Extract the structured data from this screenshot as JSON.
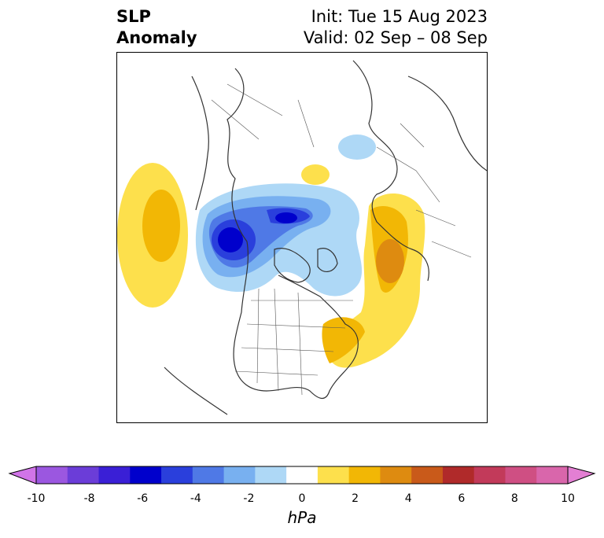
{
  "title": {
    "line1": "SLP",
    "line2": "Anomaly",
    "init": "Init: Tue 15 Aug 2023",
    "valid": "Valid: 02 Sep – 08 Sep"
  },
  "map": {
    "variable": "Sea level pressure anomaly",
    "region": "Northern Hemisphere polar view (North America / Arctic / Europe)"
  },
  "colorbar": {
    "unit": "hPa",
    "tick_labels": [
      "-10",
      "-8",
      "-6",
      "-4",
      "-2",
      "0",
      "2",
      "4",
      "6",
      "8",
      "10"
    ],
    "colors": [
      "#d174e8",
      "#9b57e0",
      "#6b3dd8",
      "#3a1fd6",
      "#0000cc",
      "#2a3fdc",
      "#4f79e6",
      "#78b0f0",
      "#aed8f6",
      "#ffffff",
      "#fde04c",
      "#f2b705",
      "#de8b10",
      "#c95a1a",
      "#b02a2a",
      "#c23a5a",
      "#cf4f83",
      "#d966ab",
      "#e37fd3"
    ],
    "extend": "both"
  },
  "anomaly_centers": [
    {
      "label": "negative",
      "region": "Alaska / Bering region",
      "min": -7
    },
    {
      "label": "negative",
      "region": "Central Arctic near Siberia",
      "min": -6
    },
    {
      "label": "positive",
      "region": "North Pacific",
      "max": 3
    },
    {
      "label": "positive",
      "region": "Greenland / Scandinavia corridor",
      "max": 4
    },
    {
      "label": "positive",
      "region": "NW Atlantic off Canada",
      "max": 2
    }
  ]
}
